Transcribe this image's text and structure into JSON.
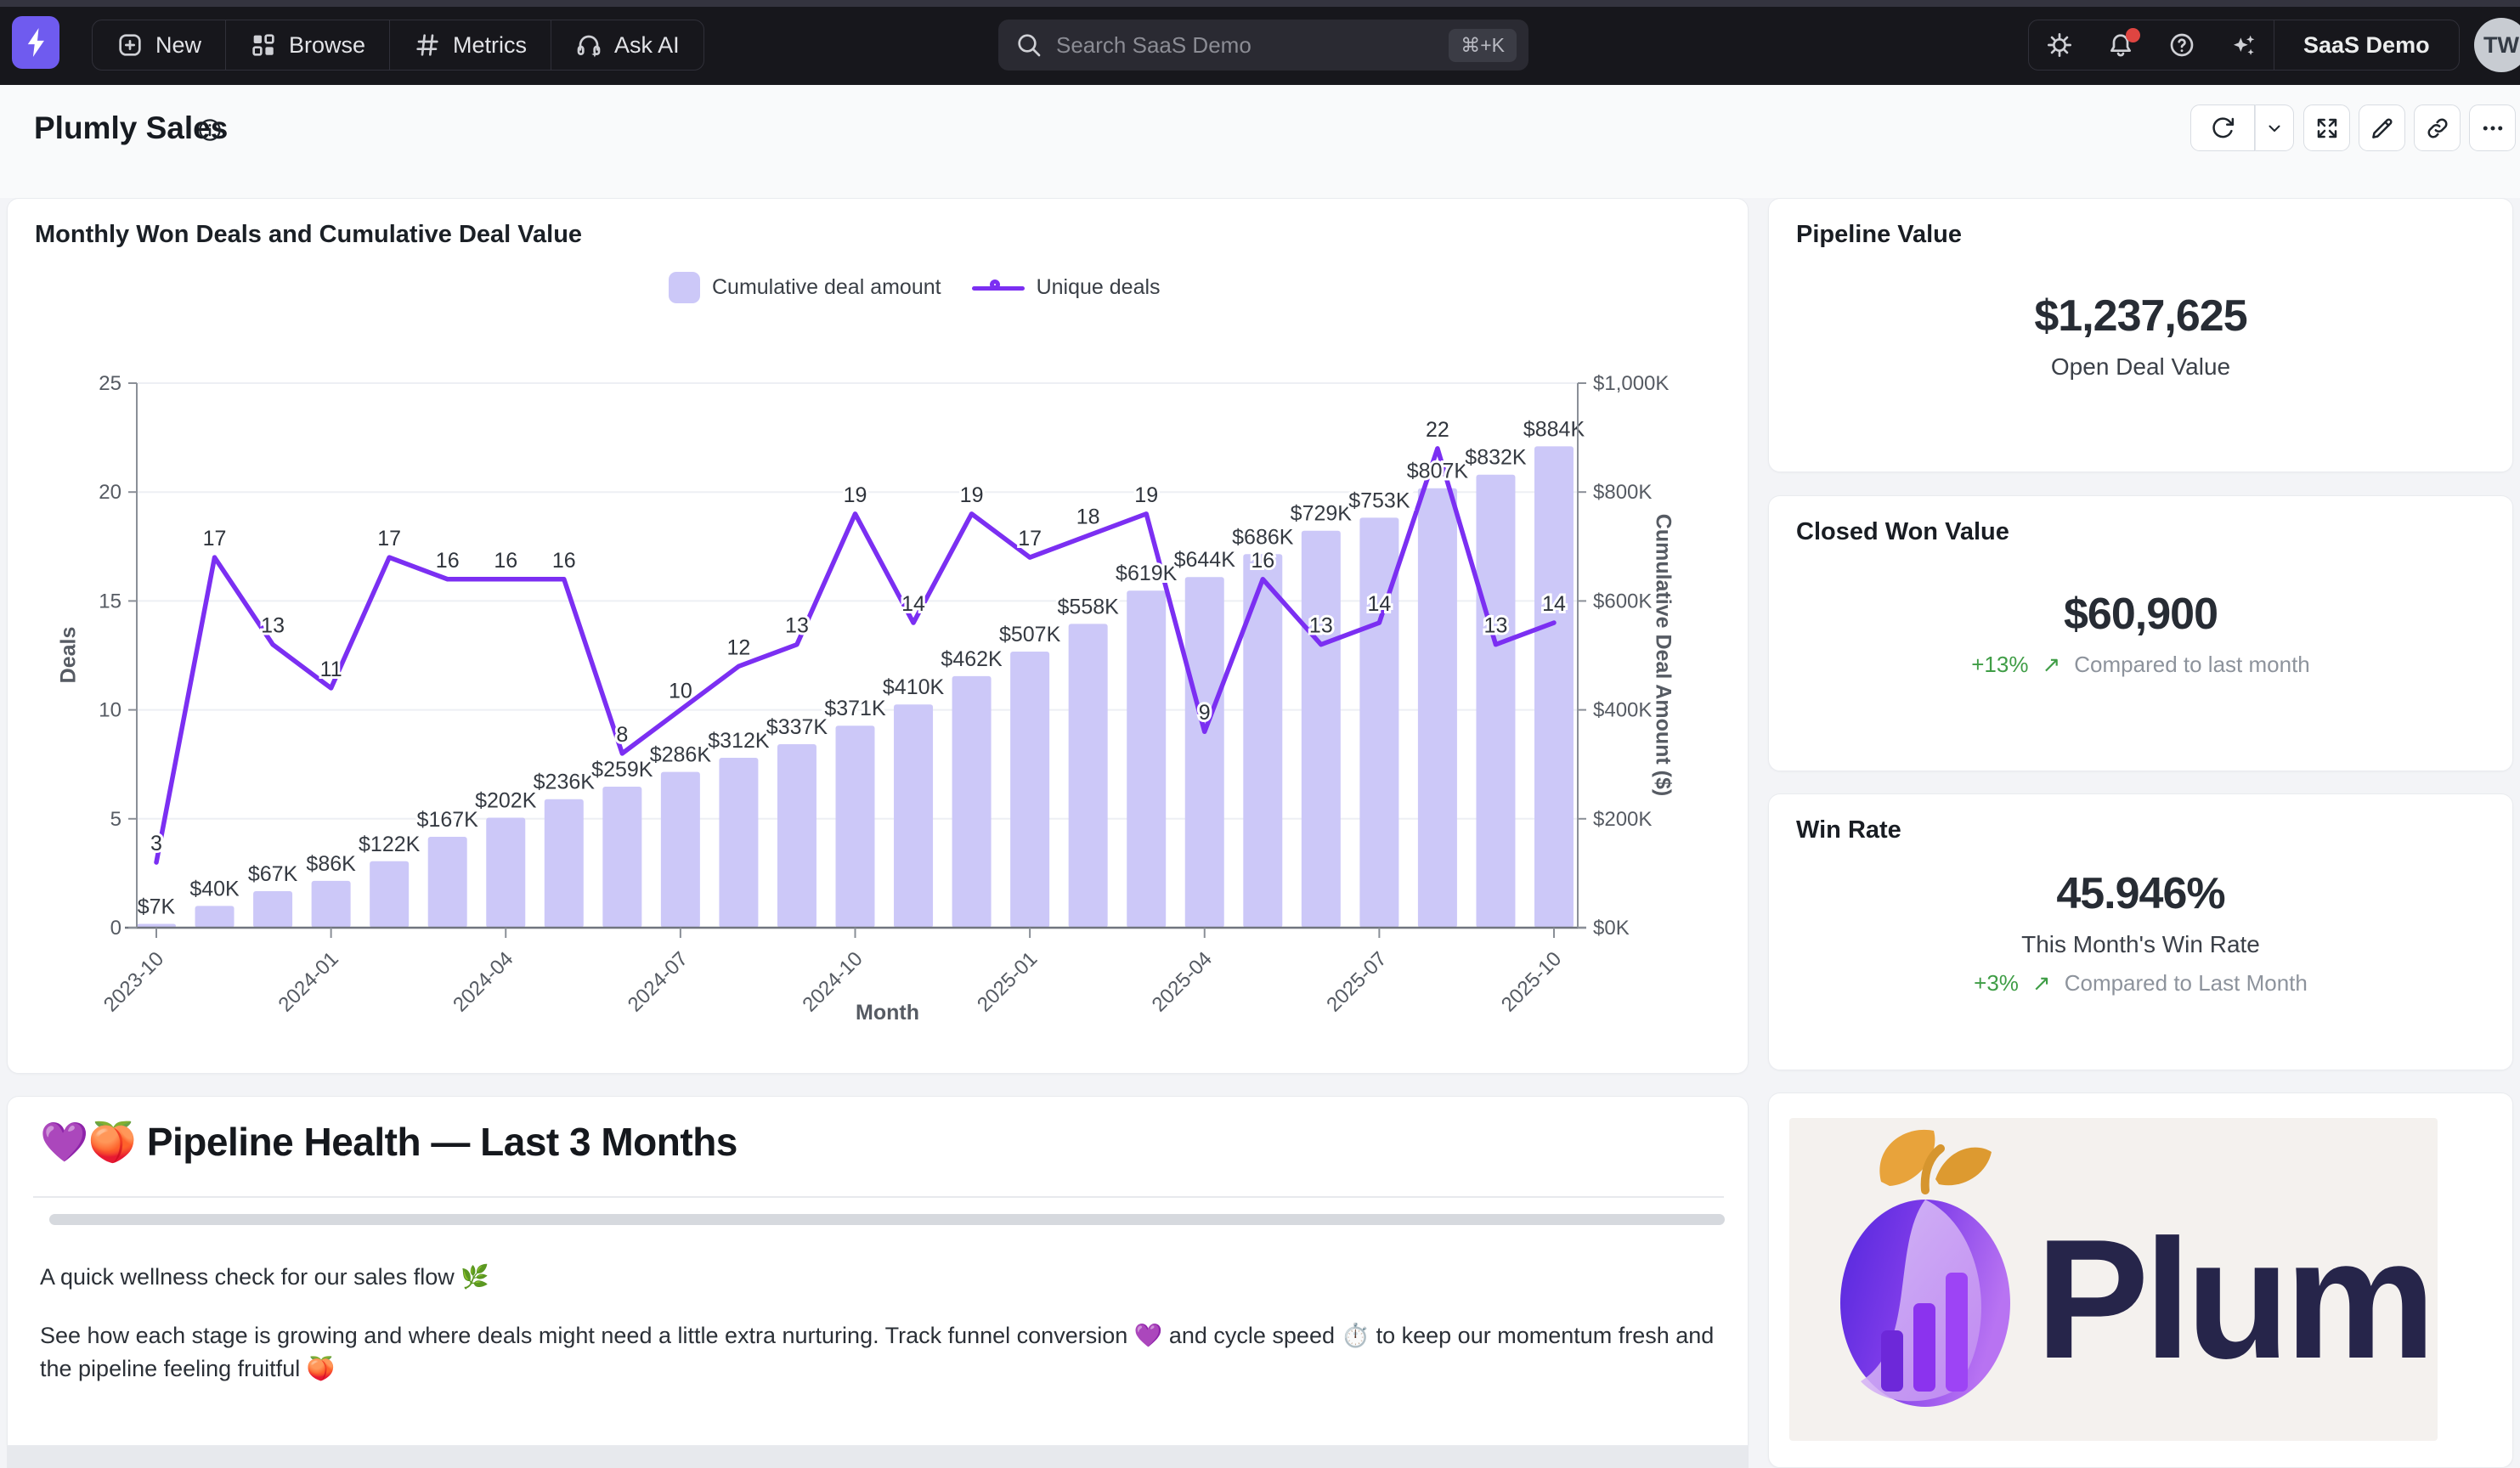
{
  "colors": {
    "accent": "#7b2ff2",
    "bar": "#ccc8f8",
    "line": "#7b2ff2",
    "delta_green": "#3f9d46",
    "badge_red": "#df4541"
  },
  "nav": {
    "brand": {
      "icon": "lightning-bolt"
    },
    "items": [
      {
        "label": "New",
        "icon": "plus-square-icon"
      },
      {
        "label": "Browse",
        "icon": "grid-icon"
      },
      {
        "label": "Metrics",
        "icon": "hash-icon"
      },
      {
        "label": "Ask AI",
        "icon": "headset-icon"
      }
    ],
    "search": {
      "placeholder": "Search SaaS Demo",
      "shortcut": "⌘+K"
    },
    "workspace": "SaaS Demo",
    "avatar_initials": "TW"
  },
  "page": {
    "title": "Plumly Sales"
  },
  "toolbar": {
    "buttons": [
      "refresh",
      "refresh-menu",
      "expand",
      "edit",
      "link",
      "more"
    ]
  },
  "chart_card": {
    "title": "Monthly Won Deals and Cumulative Deal Value"
  },
  "chart_data": {
    "type": "bar",
    "categories": [
      "2023-10",
      "2023-11",
      "2023-12",
      "2024-01",
      "2024-02",
      "2024-03",
      "2024-04",
      "2024-05",
      "2024-06",
      "2024-07",
      "2024-08",
      "2024-09",
      "2024-10",
      "2024-11",
      "2024-12",
      "2025-01",
      "2025-02",
      "2025-03",
      "2025-04",
      "2025-05",
      "2025-06",
      "2025-07",
      "2025-08",
      "2025-09",
      "2025-10"
    ],
    "series": [
      {
        "name": "Cumulative deal amount",
        "type": "bar",
        "axis": "right",
        "values_k_usd": [
          7,
          40,
          67,
          86,
          122,
          167,
          202,
          236,
          259,
          286,
          312,
          337,
          371,
          410,
          462,
          507,
          558,
          619,
          644,
          686,
          729,
          753,
          807,
          832,
          884
        ]
      },
      {
        "name": "Unique deals",
        "type": "line",
        "axis": "left",
        "values": [
          3,
          17,
          13,
          11,
          17,
          16,
          16,
          16,
          8,
          10,
          12,
          13,
          19,
          14,
          19,
          17,
          18,
          19,
          9,
          16,
          13,
          14,
          22,
          13,
          14
        ]
      }
    ],
    "xlabel": "Month",
    "x_ticks_shown": [
      "2023-10",
      "2024-01",
      "2024-04",
      "2024-07",
      "2024-10",
      "2025-01",
      "2025-04",
      "2025-07",
      "2025-10"
    ],
    "y_left": {
      "label": "Deals",
      "min": 0,
      "max": 25,
      "ticks": [
        0,
        5,
        10,
        15,
        20,
        25
      ]
    },
    "y_right": {
      "label": "Cumulative Deal Amount ($)",
      "min": 0,
      "max": 1000,
      "tick_labels": [
        "$0K",
        "$200K",
        "$400K",
        "$600K",
        "$800K",
        "$1,000K"
      ]
    },
    "grid": true,
    "legend_position": "top"
  },
  "kpis": [
    {
      "title": "Pipeline Value",
      "value": "$1,237,625",
      "subtitle": "Open Deal Value"
    },
    {
      "title": "Closed Won Value",
      "value": "$60,900",
      "delta": "+13%",
      "delta_arrow": "↗",
      "compare": "Compared to last month"
    },
    {
      "title": "Win Rate",
      "value": "45.946%",
      "subtitle": "This Month's Win Rate",
      "delta": "+3%",
      "delta_arrow": "↗",
      "compare": "Compared to Last Month"
    }
  ],
  "notes": {
    "heading": "💜🍑 Pipeline Health — Last 3 Months",
    "para1": "A quick wellness check for our sales flow 🌿",
    "para2": "See how each stage is growing and where deals might need a little extra nurturing. Track funnel conversion 💜 and cycle speed ⏱️ to keep our momentum fresh and the pipeline feeling fruitful 🍑"
  },
  "logo_card": {
    "wordmark": "Plumly"
  }
}
